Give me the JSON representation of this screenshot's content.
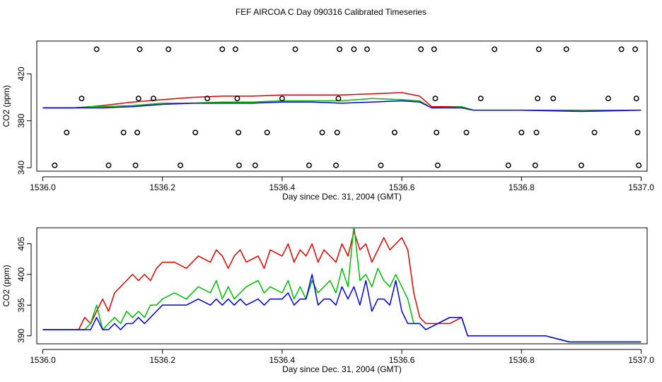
{
  "title": "FEF AIRCOA C  Day 090316  Calibrated Timeseries",
  "colors": {
    "red": "#dd0000",
    "green": "#00bb00",
    "blue": "#0000dd",
    "axis": "#000000"
  },
  "chart_data": [
    {
      "type": "line",
      "name": "top-panel",
      "xlabel": "Day since Dec. 31, 2004 (GMT)",
      "ylabel": "CO2 (ppm)",
      "xlim": [
        1535.99,
        1537.01
      ],
      "ylim": [
        337,
        448
      ],
      "xticks": [
        1536.0,
        1536.2,
        1536.4,
        1536.6,
        1536.8,
        1537.0
      ],
      "xtick_labels": [
        "1536.0",
        "1536.2",
        "1536.4",
        "1536.6",
        "1536.8",
        "1537.0"
      ],
      "yticks": [
        340,
        380,
        420
      ],
      "ytick_labels": [
        "340",
        "380",
        "420"
      ],
      "series": [
        {
          "name": "red",
          "color": "#dd0000",
          "x": [
            1536.0,
            1536.05,
            1536.08,
            1536.1,
            1536.15,
            1536.2,
            1536.25,
            1536.3,
            1536.35,
            1536.4,
            1536.45,
            1536.5,
            1536.55,
            1536.6,
            1536.63,
            1536.65,
            1536.7,
            1536.72,
            1536.8,
            1536.9,
            1537.0
          ],
          "y": [
            391,
            391,
            392,
            393,
            396,
            398,
            400,
            401,
            401,
            402,
            402,
            402,
            403,
            404,
            401,
            392,
            392,
            389,
            389,
            389,
            389
          ]
        },
        {
          "name": "green",
          "color": "#00bb00",
          "x": [
            1536.0,
            1536.05,
            1536.08,
            1536.1,
            1536.15,
            1536.2,
            1536.25,
            1536.3,
            1536.35,
            1536.4,
            1536.45,
            1536.5,
            1536.55,
            1536.6,
            1536.63,
            1536.65,
            1536.7,
            1536.72,
            1536.8,
            1536.9,
            1537.0
          ],
          "y": [
            391,
            391,
            392,
            392,
            393,
            395,
            395,
            396,
            396,
            397,
            397,
            397,
            399,
            398,
            397,
            391,
            392,
            389,
            389,
            389,
            389
          ]
        },
        {
          "name": "blue",
          "color": "#0000dd",
          "x": [
            1536.0,
            1536.05,
            1536.08,
            1536.1,
            1536.15,
            1536.2,
            1536.25,
            1536.3,
            1536.35,
            1536.4,
            1536.45,
            1536.5,
            1536.55,
            1536.6,
            1536.63,
            1536.65,
            1536.7,
            1536.72,
            1536.8,
            1536.9,
            1537.0
          ],
          "y": [
            391,
            391,
            391,
            391,
            392,
            394,
            395,
            395,
            395,
            396,
            396,
            395,
            396,
            397,
            396,
            391,
            391,
            389,
            389,
            388,
            389
          ]
        }
      ],
      "points": [
        {
          "x": 1536.02,
          "y": 342
        },
        {
          "x": 1536.04,
          "y": 370
        },
        {
          "x": 1536.065,
          "y": 399
        },
        {
          "x": 1536.09,
          "y": 441
        },
        {
          "x": 1536.11,
          "y": 342
        },
        {
          "x": 1536.135,
          "y": 370
        },
        {
          "x": 1536.155,
          "y": 342
        },
        {
          "x": 1536.158,
          "y": 370
        },
        {
          "x": 1536.16,
          "y": 399
        },
        {
          "x": 1536.162,
          "y": 441
        },
        {
          "x": 1536.185,
          "y": 399
        },
        {
          "x": 1536.21,
          "y": 441
        },
        {
          "x": 1536.23,
          "y": 342
        },
        {
          "x": 1536.255,
          "y": 370
        },
        {
          "x": 1536.275,
          "y": 399
        },
        {
          "x": 1536.3,
          "y": 441
        },
        {
          "x": 1536.322,
          "y": 441
        },
        {
          "x": 1536.325,
          "y": 399
        },
        {
          "x": 1536.327,
          "y": 370
        },
        {
          "x": 1536.328,
          "y": 342
        },
        {
          "x": 1536.355,
          "y": 342
        },
        {
          "x": 1536.375,
          "y": 370
        },
        {
          "x": 1536.4,
          "y": 399
        },
        {
          "x": 1536.422,
          "y": 441
        },
        {
          "x": 1536.445,
          "y": 342
        },
        {
          "x": 1536.467,
          "y": 370
        },
        {
          "x": 1536.49,
          "y": 342
        },
        {
          "x": 1536.492,
          "y": 370
        },
        {
          "x": 1536.494,
          "y": 399
        },
        {
          "x": 1536.496,
          "y": 441
        },
        {
          "x": 1536.52,
          "y": 441
        },
        {
          "x": 1536.542,
          "y": 441
        },
        {
          "x": 1536.565,
          "y": 342
        },
        {
          "x": 1536.588,
          "y": 370
        },
        {
          "x": 1536.632,
          "y": 441
        },
        {
          "x": 1536.654,
          "y": 441
        },
        {
          "x": 1536.656,
          "y": 399
        },
        {
          "x": 1536.658,
          "y": 370
        },
        {
          "x": 1536.66,
          "y": 342
        },
        {
          "x": 1536.708,
          "y": 370
        },
        {
          "x": 1536.732,
          "y": 399
        },
        {
          "x": 1536.755,
          "y": 441
        },
        {
          "x": 1536.778,
          "y": 342
        },
        {
          "x": 1536.8,
          "y": 370
        },
        {
          "x": 1536.823,
          "y": 342
        },
        {
          "x": 1536.825,
          "y": 370
        },
        {
          "x": 1536.827,
          "y": 399
        },
        {
          "x": 1536.829,
          "y": 441
        },
        {
          "x": 1536.853,
          "y": 399
        },
        {
          "x": 1536.875,
          "y": 441
        },
        {
          "x": 1536.9,
          "y": 342
        },
        {
          "x": 1536.922,
          "y": 370
        },
        {
          "x": 1536.945,
          "y": 399
        },
        {
          "x": 1536.967,
          "y": 441
        },
        {
          "x": 1536.99,
          "y": 441
        },
        {
          "x": 1536.992,
          "y": 399
        },
        {
          "x": 1536.994,
          "y": 370
        },
        {
          "x": 1536.996,
          "y": 342
        }
      ]
    },
    {
      "type": "line",
      "name": "bottom-panel",
      "xlabel": "Day since Dec. 31, 2004 (GMT)",
      "ylabel": "CO2 (ppm)",
      "xlim": [
        1535.99,
        1537.01
      ],
      "ylim": [
        388.7,
        407.6
      ],
      "xticks": [
        1536.0,
        1536.2,
        1536.4,
        1536.6,
        1536.8,
        1537.0
      ],
      "xtick_labels": [
        "1536.0",
        "1536.2",
        "1536.4",
        "1536.6",
        "1536.8",
        "1537.0"
      ],
      "yticks": [
        390,
        395,
        400,
        405
      ],
      "ytick_labels": [
        "390",
        "395",
        "400",
        "405"
      ],
      "series": [
        {
          "name": "red",
          "color": "#dd0000",
          "x": [
            1536.0,
            1536.02,
            1536.04,
            1536.05,
            1536.06,
            1536.07,
            1536.08,
            1536.09,
            1536.1,
            1536.11,
            1536.12,
            1536.13,
            1536.14,
            1536.15,
            1536.16,
            1536.17,
            1536.18,
            1536.19,
            1536.2,
            1536.22,
            1536.24,
            1536.26,
            1536.28,
            1536.29,
            1536.3,
            1536.31,
            1536.32,
            1536.33,
            1536.34,
            1536.36,
            1536.37,
            1536.38,
            1536.4,
            1536.41,
            1536.42,
            1536.43,
            1536.44,
            1536.45,
            1536.46,
            1536.47,
            1536.48,
            1536.49,
            1536.5,
            1536.51,
            1536.52,
            1536.53,
            1536.54,
            1536.55,
            1536.56,
            1536.57,
            1536.58,
            1536.59,
            1536.6,
            1536.61,
            1536.62,
            1536.63,
            1536.64,
            1536.66,
            1536.68,
            1536.7,
            1536.71,
            1536.72,
            1536.76,
            1536.8,
            1536.84,
            1536.88,
            1536.92,
            1536.95,
            1536.97,
            1536.99,
            1537.0
          ],
          "y": [
            391,
            391,
            391,
            391,
            391,
            393,
            392,
            394,
            396,
            394,
            397,
            398,
            399,
            400,
            399,
            400,
            399,
            401,
            402,
            402,
            401,
            403,
            402,
            404,
            403,
            401,
            403,
            404,
            402,
            403,
            401,
            404,
            403,
            405,
            402,
            404,
            403,
            405,
            402,
            404,
            403,
            402,
            405,
            403,
            407,
            404,
            405,
            402,
            404,
            406,
            404,
            405,
            406,
            404,
            397,
            393,
            392,
            392,
            392,
            393,
            390,
            390,
            390,
            390,
            390,
            389,
            389,
            389,
            389,
            389,
            389
          ]
        },
        {
          "name": "green",
          "color": "#00bb00",
          "x": [
            1536.0,
            1536.02,
            1536.04,
            1536.05,
            1536.06,
            1536.07,
            1536.08,
            1536.09,
            1536.1,
            1536.11,
            1536.12,
            1536.13,
            1536.14,
            1536.15,
            1536.16,
            1536.17,
            1536.18,
            1536.19,
            1536.2,
            1536.22,
            1536.24,
            1536.26,
            1536.28,
            1536.29,
            1536.3,
            1536.31,
            1536.32,
            1536.33,
            1536.34,
            1536.36,
            1536.37,
            1536.38,
            1536.4,
            1536.41,
            1536.42,
            1536.43,
            1536.44,
            1536.45,
            1536.46,
            1536.47,
            1536.48,
            1536.49,
            1536.5,
            1536.51,
            1536.52,
            1536.53,
            1536.54,
            1536.55,
            1536.56,
            1536.57,
            1536.58,
            1536.59,
            1536.6,
            1536.61,
            1536.62,
            1536.63,
            1536.64,
            1536.66,
            1536.68,
            1536.7,
            1536.71,
            1536.72,
            1536.76,
            1536.8,
            1536.84,
            1536.88,
            1536.92,
            1536.95,
            1536.97,
            1536.99,
            1537.0
          ],
          "y": [
            391,
            391,
            391,
            391,
            391,
            391,
            392,
            395,
            391,
            392,
            393,
            392,
            394,
            393,
            394,
            393,
            395,
            395,
            396,
            397,
            396,
            398,
            397,
            399,
            396,
            398,
            396,
            397,
            398,
            399,
            397,
            398,
            397,
            399,
            396,
            398,
            396,
            399,
            397,
            398,
            399,
            397,
            401,
            398,
            408,
            399,
            400,
            398,
            401,
            399,
            398,
            400,
            398,
            396,
            392,
            392,
            391,
            392,
            393,
            393,
            390,
            390,
            390,
            390,
            390,
            389,
            389,
            389,
            389,
            389,
            389
          ]
        },
        {
          "name": "blue",
          "color": "#0000dd",
          "x": [
            1536.0,
            1536.02,
            1536.04,
            1536.05,
            1536.06,
            1536.07,
            1536.08,
            1536.09,
            1536.1,
            1536.11,
            1536.12,
            1536.13,
            1536.14,
            1536.15,
            1536.16,
            1536.17,
            1536.18,
            1536.19,
            1536.2,
            1536.22,
            1536.24,
            1536.26,
            1536.28,
            1536.29,
            1536.3,
            1536.31,
            1536.32,
            1536.33,
            1536.34,
            1536.36,
            1536.37,
            1536.38,
            1536.4,
            1536.41,
            1536.42,
            1536.43,
            1536.44,
            1536.45,
            1536.46,
            1536.47,
            1536.48,
            1536.49,
            1536.5,
            1536.51,
            1536.52,
            1536.53,
            1536.54,
            1536.55,
            1536.56,
            1536.57,
            1536.58,
            1536.59,
            1536.6,
            1536.61,
            1536.62,
            1536.63,
            1536.64,
            1536.66,
            1536.68,
            1536.7,
            1536.71,
            1536.72,
            1536.76,
            1536.8,
            1536.84,
            1536.88,
            1536.92,
            1536.95,
            1536.97,
            1536.99,
            1537.0
          ],
          "y": [
            391,
            391,
            391,
            391,
            391,
            391,
            391,
            393,
            391,
            391,
            392,
            391,
            392,
            392,
            393,
            392,
            393,
            394,
            395,
            395,
            395,
            396,
            395,
            396,
            395,
            396,
            395,
            396,
            395,
            396,
            395,
            396,
            396,
            397,
            395,
            396,
            396,
            400,
            395,
            396,
            396,
            395,
            398,
            396,
            398,
            395,
            399,
            394,
            396,
            396,
            395,
            399,
            394,
            392,
            392,
            392,
            391,
            392,
            393,
            393,
            390,
            390,
            390,
            390,
            390,
            389,
            389,
            389,
            389,
            389,
            389
          ]
        }
      ],
      "points": []
    }
  ]
}
